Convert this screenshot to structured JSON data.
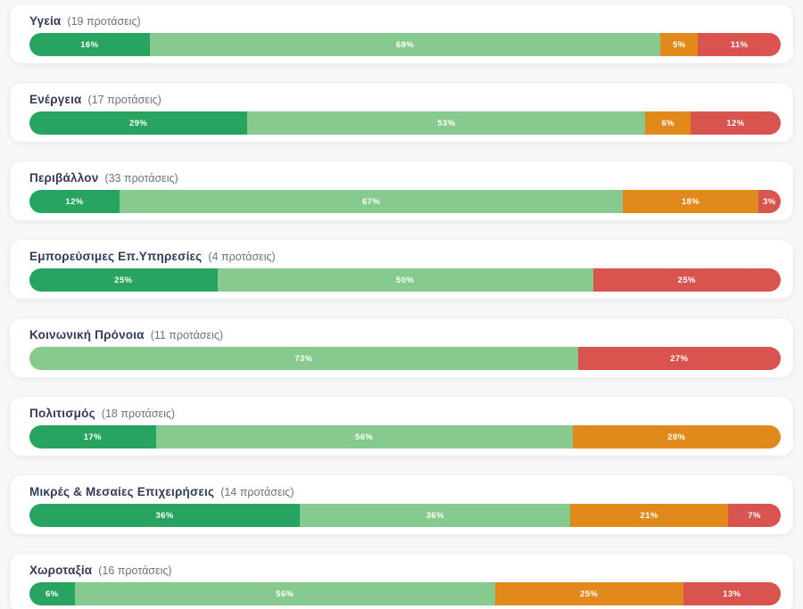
{
  "palette": {
    "positive": "#27a45f",
    "somewhat_positive": "#87ca8f",
    "somewhat_negative": "#e2891c",
    "negative": "#d9534f"
  },
  "text_colors": {
    "category": "#333b5d",
    "count": "#6b7280",
    "segment_label": "#ffffff"
  },
  "rows": [
    {
      "label": "Υγεία",
      "count_label": "(19 προτάσεις)",
      "segments": [
        {
          "tone": "positive",
          "value": 16,
          "label": "16%"
        },
        {
          "tone": "somewhat_positive",
          "value": 68,
          "label": "68%"
        },
        {
          "tone": "somewhat_negative",
          "value": 5,
          "label": "5%"
        },
        {
          "tone": "negative",
          "value": 11,
          "label": "11%"
        }
      ]
    },
    {
      "label": "Ενέργεια",
      "count_label": "(17 προτάσεις)",
      "segments": [
        {
          "tone": "positive",
          "value": 29,
          "label": "29%"
        },
        {
          "tone": "somewhat_positive",
          "value": 53,
          "label": "53%"
        },
        {
          "tone": "somewhat_negative",
          "value": 6,
          "label": "6%"
        },
        {
          "tone": "negative",
          "value": 12,
          "label": "12%"
        }
      ]
    },
    {
      "label": "Περιβάλλον",
      "count_label": "(33 προτάσεις)",
      "segments": [
        {
          "tone": "positive",
          "value": 12,
          "label": "12%"
        },
        {
          "tone": "somewhat_positive",
          "value": 67,
          "label": "67%"
        },
        {
          "tone": "somewhat_negative",
          "value": 18,
          "label": "18%"
        },
        {
          "tone": "negative",
          "value": 3,
          "label": "3%"
        }
      ]
    },
    {
      "label": "Εμπορεύσιμες Επ.Υπηρεσίες",
      "count_label": "(4 προτάσεις)",
      "segments": [
        {
          "tone": "positive",
          "value": 25,
          "label": "25%"
        },
        {
          "tone": "somewhat_positive",
          "value": 50,
          "label": "50%"
        },
        {
          "tone": "negative",
          "value": 25,
          "label": "25%"
        }
      ]
    },
    {
      "label": "Κοινωνική Πρόνοια",
      "count_label": "(11 προτάσεις)",
      "segments": [
        {
          "tone": "somewhat_positive",
          "value": 73,
          "label": "73%"
        },
        {
          "tone": "negative",
          "value": 27,
          "label": "27%"
        }
      ]
    },
    {
      "label": "Πολιτισμός",
      "count_label": "(18 προτάσεις)",
      "segments": [
        {
          "tone": "positive",
          "value": 17,
          "label": "17%"
        },
        {
          "tone": "somewhat_positive",
          "value": 56,
          "label": "56%"
        },
        {
          "tone": "somewhat_negative",
          "value": 28,
          "label": "28%"
        }
      ]
    },
    {
      "label": "Μικρές & Μεσαίες Επιχειρήσεις",
      "count_label": "(14 προτάσεις)",
      "segments": [
        {
          "tone": "positive",
          "value": 36,
          "label": "36%"
        },
        {
          "tone": "somewhat_positive",
          "value": 36,
          "label": "36%"
        },
        {
          "tone": "somewhat_negative",
          "value": 21,
          "label": "21%"
        },
        {
          "tone": "negative",
          "value": 7,
          "label": "7%"
        }
      ]
    },
    {
      "label": "Χωροταξία",
      "count_label": "(16 προτάσεις)",
      "segments": [
        {
          "tone": "positive",
          "value": 6,
          "label": "6%"
        },
        {
          "tone": "somewhat_positive",
          "value": 56,
          "label": "56%"
        },
        {
          "tone": "somewhat_negative",
          "value": 25,
          "label": "25%"
        },
        {
          "tone": "negative",
          "value": 13,
          "label": "13%"
        }
      ]
    }
  ],
  "chart_data": {
    "type": "bar",
    "orientation": "horizontal",
    "stacked": true,
    "unit": "%",
    "title": "",
    "categories": [
      "Υγεία",
      "Ενέργεια",
      "Περιβάλλον",
      "Εμπορεύσιμες Επ.Υπηρεσίες",
      "Κοινωνική Πρόνοια",
      "Πολιτισμός",
      "Μικρές & Μεσαίες Επιχειρήσεις",
      "Χωροταξία"
    ],
    "category_counts": [
      19,
      17,
      33,
      4,
      11,
      18,
      14,
      16
    ],
    "category_count_labels": [
      "(19 προτάσεις)",
      "(17 προτάσεις)",
      "(33 προτάσεις)",
      "(4 προτάσεις)",
      "(11 προτάσεις)",
      "(18 προτάσεις)",
      "(14 προτάσεις)",
      "(16 προτάσεις)"
    ],
    "series": [
      {
        "name": "dark-green",
        "color": "#27a45f",
        "values": [
          16,
          29,
          12,
          25,
          0,
          17,
          36,
          6
        ]
      },
      {
        "name": "light-green",
        "color": "#87ca8f",
        "values": [
          68,
          53,
          67,
          50,
          73,
          56,
          36,
          56
        ]
      },
      {
        "name": "orange",
        "color": "#e2891c",
        "values": [
          5,
          6,
          18,
          0,
          0,
          28,
          21,
          25
        ]
      },
      {
        "name": "red",
        "color": "#d9534f",
        "values": [
          11,
          12,
          3,
          25,
          27,
          0,
          7,
          13
        ]
      }
    ],
    "xlim": [
      0,
      100
    ],
    "legend": false,
    "grid": false
  }
}
